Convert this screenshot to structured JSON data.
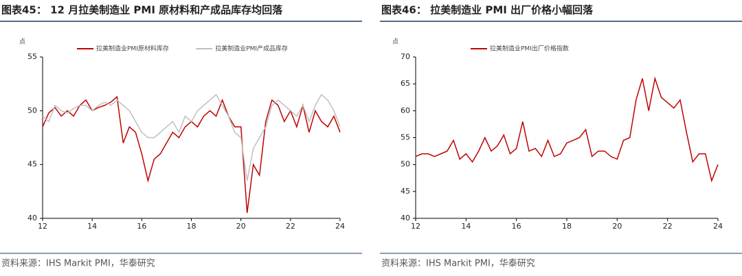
{
  "chart_data": [
    {
      "type": "line",
      "title": "图表45：  12 月拉美制造业 PMI 原材料和产成品库存均回落",
      "y_label": "点",
      "source": "资料来源：IHS Markit PMI，华泰研究",
      "x": [
        12,
        12.25,
        12.5,
        12.75,
        13,
        13.25,
        13.5,
        13.75,
        14,
        14.25,
        14.5,
        14.75,
        15,
        15.25,
        15.5,
        15.75,
        16,
        16.25,
        16.5,
        16.75,
        17,
        17.25,
        17.5,
        17.75,
        18,
        18.25,
        18.5,
        18.75,
        19,
        19.25,
        19.5,
        19.75,
        20,
        20.25,
        20.5,
        20.75,
        21,
        21.25,
        21.5,
        21.75,
        22,
        22.25,
        22.5,
        22.75,
        23,
        23.25,
        23.5,
        23.75,
        24
      ],
      "xlim": [
        12,
        24
      ],
      "xticks": [
        12,
        14,
        16,
        18,
        20,
        22,
        24
      ],
      "ylim": [
        40,
        55
      ],
      "yticks": [
        40,
        45,
        50,
        55
      ],
      "series": [
        {
          "name": "拉美制造业PMI原材料库存",
          "color": "#c00000",
          "values": [
            48.5,
            49.8,
            50.3,
            49.5,
            50.0,
            49.5,
            50.5,
            51.0,
            50.0,
            50.3,
            50.5,
            50.8,
            51.3,
            47.0,
            48.5,
            48.0,
            46.0,
            43.5,
            45.5,
            46.0,
            47.0,
            48.0,
            47.5,
            48.5,
            49.0,
            48.5,
            49.5,
            50.0,
            49.5,
            51.0,
            49.5,
            48.5,
            48.5,
            40.5,
            45.0,
            44.0,
            49.0,
            51.0,
            50.5,
            49.0,
            50.0,
            48.5,
            50.5,
            48.0,
            50.0,
            49.0,
            48.5,
            49.5,
            48.0
          ]
        },
        {
          "name": "拉美制造业PMI产成品库存",
          "color": "#bfbfbf",
          "values": [
            49.5,
            49.0,
            50.5,
            50.0,
            49.8,
            50.2,
            50.5,
            50.5,
            50.0,
            50.5,
            50.8,
            50.5,
            51.0,
            50.5,
            50.0,
            49.0,
            48.0,
            47.5,
            47.5,
            48.0,
            48.5,
            49.0,
            48.0,
            49.5,
            49.0,
            50.0,
            50.5,
            51.0,
            51.5,
            50.5,
            49.5,
            48.0,
            47.5,
            43.5,
            46.5,
            47.5,
            48.5,
            50.5,
            51.0,
            50.5,
            50.0,
            49.5,
            50.5,
            49.0,
            50.5,
            51.5,
            51.0,
            50.0,
            48.5
          ]
        }
      ]
    },
    {
      "type": "line",
      "title": "图表46：  拉美制造业 PMI 出厂价格小幅回落",
      "y_label": "点",
      "source": "资料来源：IHS Markit PMI，华泰研究",
      "x": [
        12,
        12.25,
        12.5,
        12.75,
        13,
        13.25,
        13.5,
        13.75,
        14,
        14.25,
        14.5,
        14.75,
        15,
        15.25,
        15.5,
        15.75,
        16,
        16.25,
        16.5,
        16.75,
        17,
        17.25,
        17.5,
        17.75,
        18,
        18.25,
        18.5,
        18.75,
        19,
        19.25,
        19.5,
        19.75,
        20,
        20.25,
        20.5,
        20.75,
        21,
        21.25,
        21.5,
        21.75,
        22,
        22.25,
        22.5,
        22.75,
        23,
        23.25,
        23.5,
        23.75,
        24
      ],
      "xlim": [
        12,
        24
      ],
      "xticks": [
        12,
        14,
        16,
        18,
        20,
        22,
        24
      ],
      "ylim": [
        40,
        70
      ],
      "yticks": [
        40,
        45,
        50,
        55,
        60,
        65,
        70
      ],
      "series": [
        {
          "name": "拉美制造业PMI出厂价格指数",
          "color": "#c00000",
          "values": [
            51.5,
            52.0,
            52.0,
            51.5,
            52.0,
            52.5,
            54.5,
            51.0,
            52.0,
            50.5,
            52.5,
            55.0,
            52.5,
            53.5,
            55.5,
            52.0,
            53.0,
            58.0,
            52.5,
            53.0,
            51.5,
            54.5,
            51.5,
            52.0,
            54.0,
            54.5,
            55.0,
            56.5,
            51.5,
            52.5,
            52.5,
            51.5,
            51.0,
            54.5,
            55.0,
            62.0,
            66.0,
            60.0,
            66.0,
            62.5,
            61.5,
            60.5,
            62.0,
            56.0,
            50.5,
            52.0,
            52.0,
            47.0,
            50.0
          ]
        }
      ]
    }
  ]
}
